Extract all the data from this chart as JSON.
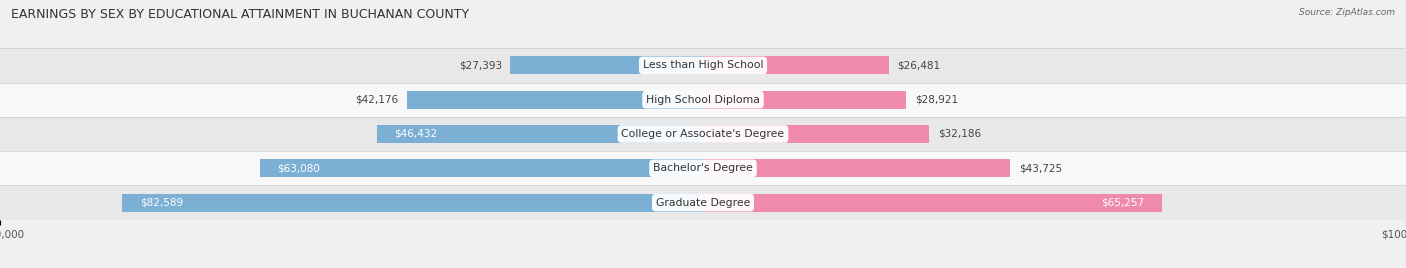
{
  "title": "EARNINGS BY SEX BY EDUCATIONAL ATTAINMENT IN BUCHANAN COUNTY",
  "source": "Source: ZipAtlas.com",
  "categories": [
    "Less than High School",
    "High School Diploma",
    "College or Associate's Degree",
    "Bachelor's Degree",
    "Graduate Degree"
  ],
  "male_values": [
    27393,
    42176,
    46432,
    63080,
    82589
  ],
  "female_values": [
    26481,
    28921,
    32186,
    43725,
    65257
  ],
  "max_value": 100000,
  "male_color": "#7bafd4",
  "female_color": "#f08aaa",
  "bar_height": 0.52,
  "background_color": "#f0f0f0",
  "row_colors": [
    "#e8e8e8",
    "#f8f8f8"
  ],
  "title_fontsize": 9.0,
  "label_fontsize": 7.5,
  "tick_fontsize": 7.5,
  "category_fontsize": 7.8,
  "white_label_threshold_male": 45000,
  "white_label_threshold_female": 45000
}
